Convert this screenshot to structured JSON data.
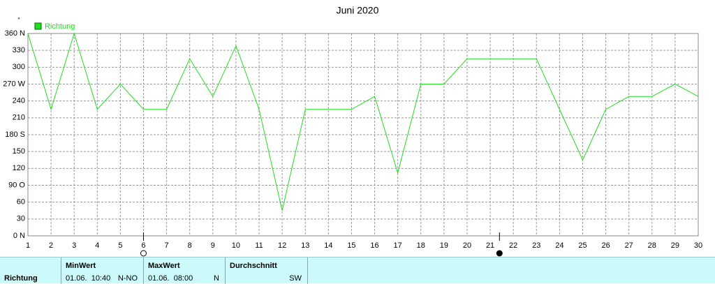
{
  "chart_data": {
    "type": "line",
    "title": "Juni 2020",
    "y_label": "°",
    "x": [
      1,
      2,
      3,
      4,
      5,
      6,
      7,
      8,
      9,
      10,
      11,
      12,
      13,
      14,
      15,
      16,
      17,
      18,
      19,
      20,
      21,
      22,
      23,
      24,
      25,
      26,
      27,
      28,
      29,
      30
    ],
    "series": [
      {
        "name": "Richtung",
        "color": "#22dd22",
        "values": [
          360,
          225,
          360,
          225,
          270,
          225,
          225,
          315,
          248,
          338,
          225,
          45,
          225,
          225,
          225,
          248,
          112,
          270,
          270,
          315,
          315,
          315,
          315,
          225,
          135,
          225,
          248,
          248,
          270,
          248
        ]
      }
    ],
    "xlim": [
      1,
      30
    ],
    "xticks": [
      1,
      2,
      3,
      4,
      5,
      6,
      7,
      8,
      9,
      10,
      11,
      12,
      13,
      14,
      15,
      16,
      17,
      18,
      19,
      20,
      21,
      22,
      23,
      24,
      25,
      26,
      27,
      28,
      29,
      30
    ],
    "ylim": [
      0,
      360
    ],
    "yticks": [
      {
        "value": 0,
        "label": "0 N"
      },
      30,
      60,
      {
        "value": 90,
        "label": "90  O"
      },
      120,
      150,
      {
        "value": 180,
        "label": "180 S"
      },
      210,
      240,
      {
        "value": 270,
        "label": "270 W"
      },
      300,
      330,
      {
        "value": 360,
        "label": "360 N"
      }
    ],
    "grid": true,
    "markers": [
      {
        "x": 6,
        "filled": false
      },
      {
        "x": 21.4,
        "filled": true
      }
    ]
  },
  "table": {
    "row_label": "Richtung",
    "cells": [
      {
        "header": "MinWert",
        "time": "01.06.  10:40",
        "value": "N-NO"
      },
      {
        "header": "MaxWert",
        "time": "01.06.  08:00",
        "value": "N"
      },
      {
        "header": "Durchschnitt",
        "value": "SW"
      }
    ]
  }
}
